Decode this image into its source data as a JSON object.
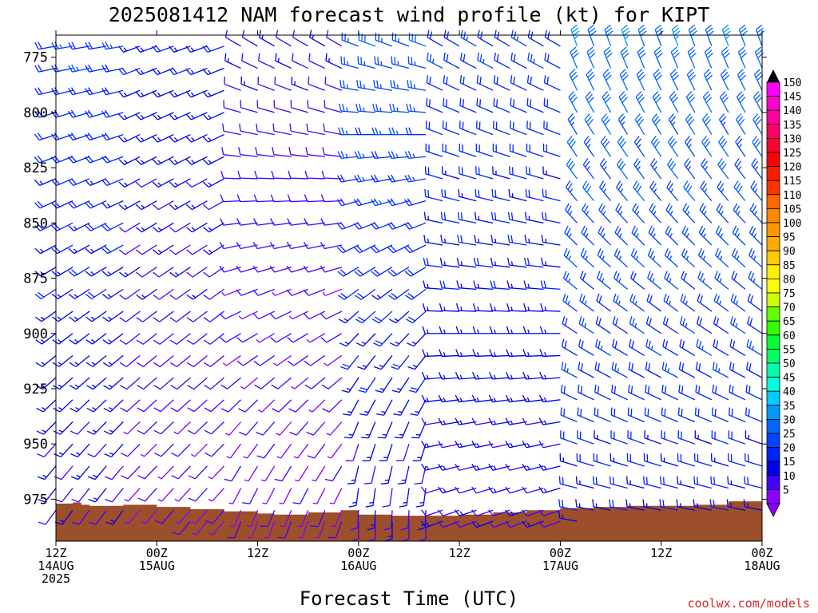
{
  "chart_data": {
    "type": "wind-barb-profile",
    "title": "2025081412 NAM forecast wind profile (kt) for KIPT",
    "xlabel": "Forecast Time (UTC)",
    "ylabel": "",
    "y_axis": {
      "ticks": [
        775,
        800,
        825,
        850,
        875,
        900,
        925,
        950,
        975
      ],
      "range": [
        765,
        994
      ],
      "units": "hPa"
    },
    "x_axis": {
      "range_hours": [
        0,
        84
      ],
      "tick_hours": [
        0,
        12,
        24,
        36,
        48,
        60,
        72,
        84
      ],
      "tick_labels": [
        [
          "12Z",
          "14AUG",
          "2025"
        ],
        [
          "00Z",
          "15AUG"
        ],
        [
          "12Z"
        ],
        [
          "00Z",
          "16AUG"
        ],
        [
          "12Z"
        ],
        [
          "00Z",
          "17AUG"
        ],
        [
          "12Z"
        ],
        [
          "00Z",
          "18AUG"
        ]
      ]
    },
    "barb_levels_hpa": [
      770,
      780,
      790,
      800,
      810,
      820,
      830,
      840,
      850,
      860,
      870,
      880,
      890,
      900,
      910,
      920,
      930,
      940,
      950,
      960,
      970,
      980,
      985
    ],
    "barb_time_step_hours": 2,
    "wind_regimes": [
      {
        "hours": [
          0,
          8
        ],
        "upper_dir_deg": 260,
        "lower_dir_deg": 215,
        "speed_kt": [
          10,
          20
        ]
      },
      {
        "hours": [
          8,
          20
        ],
        "upper_dir_deg": 250,
        "lower_dir_deg": 220,
        "speed_kt": [
          5,
          15
        ]
      },
      {
        "hours": [
          20,
          34
        ],
        "upper_dir_deg": 300,
        "lower_dir_deg": 200,
        "speed_kt": [
          5,
          10
        ]
      },
      {
        "hours": [
          34,
          44
        ],
        "upper_dir_deg": 290,
        "lower_dir_deg": 180,
        "speed_kt": [
          10,
          25
        ]
      },
      {
        "hours": [
          44,
          60
        ],
        "upper_dir_deg": 300,
        "lower_dir_deg": 250,
        "speed_kt": [
          10,
          20
        ]
      },
      {
        "hours": [
          60,
          84
        ],
        "upper_dir_deg": 340,
        "lower_dir_deg": 280,
        "speed_kt": [
          15,
          30
        ]
      }
    ],
    "terrain_color": "#9c4f2a",
    "terrain_surface_hpa": [
      [
        0,
        977
      ],
      [
        2,
        976.5
      ],
      [
        3,
        977.5
      ],
      [
        4,
        978
      ],
      [
        8,
        977.5
      ],
      [
        12,
        978.5
      ],
      [
        16,
        979.5
      ],
      [
        20,
        980.5
      ],
      [
        24,
        981.5
      ],
      [
        26,
        982
      ],
      [
        30,
        981
      ],
      [
        34,
        980
      ],
      [
        36,
        982
      ],
      [
        40,
        982.5
      ],
      [
        44,
        982.5
      ],
      [
        48,
        982
      ],
      [
        52,
        981
      ],
      [
        56,
        980
      ],
      [
        60,
        979
      ],
      [
        64,
        978.5
      ],
      [
        68,
        978
      ],
      [
        72,
        978
      ],
      [
        76,
        977.5
      ],
      [
        80,
        976
      ],
      [
        84,
        975.5
      ]
    ],
    "colorbar": {
      "labels": [
        "150",
        "145",
        "140",
        "135",
        "130",
        "125",
        "120",
        "115",
        "110",
        "105",
        "100",
        "95",
        "90",
        "85",
        "80",
        "75",
        "70",
        "65",
        "60",
        "55",
        "50",
        "45",
        "40",
        "35",
        "30",
        "25",
        "20",
        "15",
        "10",
        "5"
      ],
      "colors": [
        "#ff00ff",
        "#ff00cc",
        "#ff0099",
        "#ff0066",
        "#ff0033",
        "#ff0000",
        "#ff1a00",
        "#ff3300",
        "#ff6600",
        "#ff8800",
        "#ff9900",
        "#ffaa00",
        "#ffcc00",
        "#ffee00",
        "#ffff00",
        "#ccff00",
        "#66ff00",
        "#33ff00",
        "#00ff33",
        "#00ff66",
        "#00ffaa",
        "#00ffdd",
        "#00ccff",
        "#0099ff",
        "#0066ff",
        "#0044ff",
        "#0022ff",
        "#0000ee",
        "#4400ff",
        "#8800ff"
      ]
    }
  },
  "credit": "coolwx.com/models"
}
